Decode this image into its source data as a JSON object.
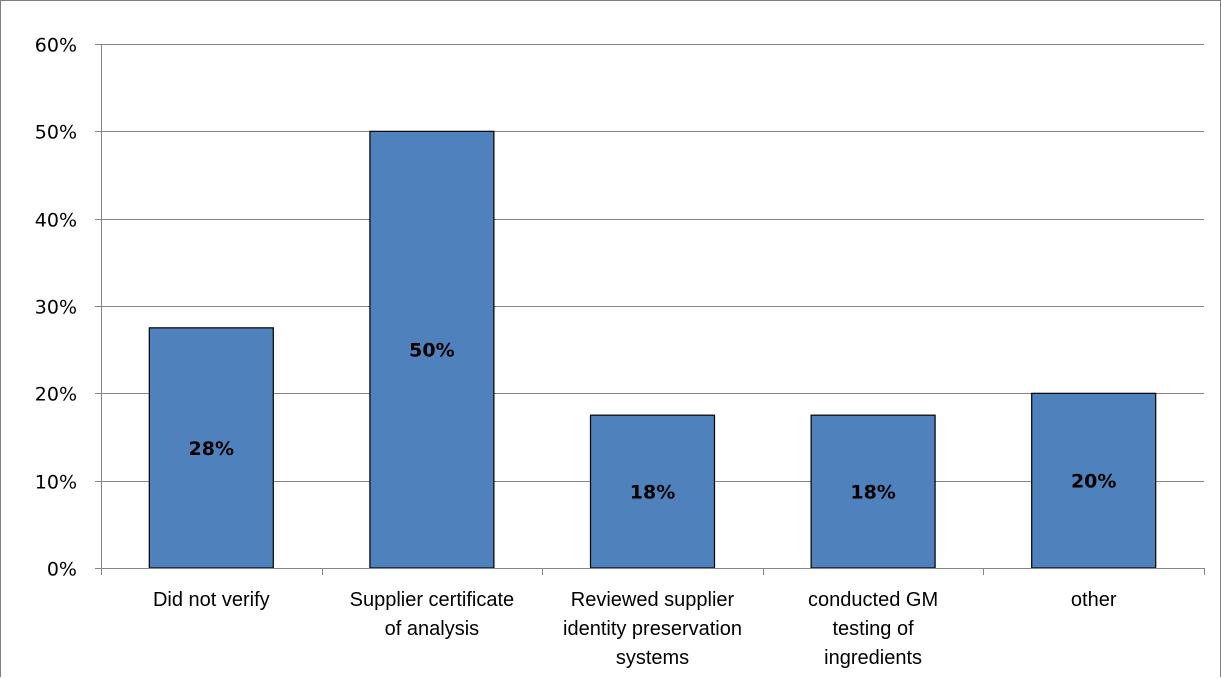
{
  "chart_data": {
    "type": "bar",
    "categories": [
      [
        "Did not verify"
      ],
      [
        "Supplier certificate",
        "of analysis"
      ],
      [
        "Reviewed supplier",
        "identity preservation",
        "systems"
      ],
      [
        "conducted GM",
        "testing of",
        "ingredients"
      ],
      [
        "other"
      ]
    ],
    "values": [
      27.5,
      50,
      17.5,
      17.5,
      20
    ],
    "data_labels": [
      "28%",
      "50%",
      "18%",
      "18%",
      "20%"
    ],
    "ylim": [
      0,
      60
    ],
    "yticks": [
      0,
      10,
      20,
      30,
      40,
      50,
      60
    ],
    "ytick_labels": [
      "0%",
      "10%",
      "20%",
      "30%",
      "40%",
      "50%",
      "60%"
    ],
    "grid": true,
    "legend": "none",
    "bar_color": "#4f81bd",
    "bar_edge_color": "#000000",
    "grid_color": "#868686"
  }
}
